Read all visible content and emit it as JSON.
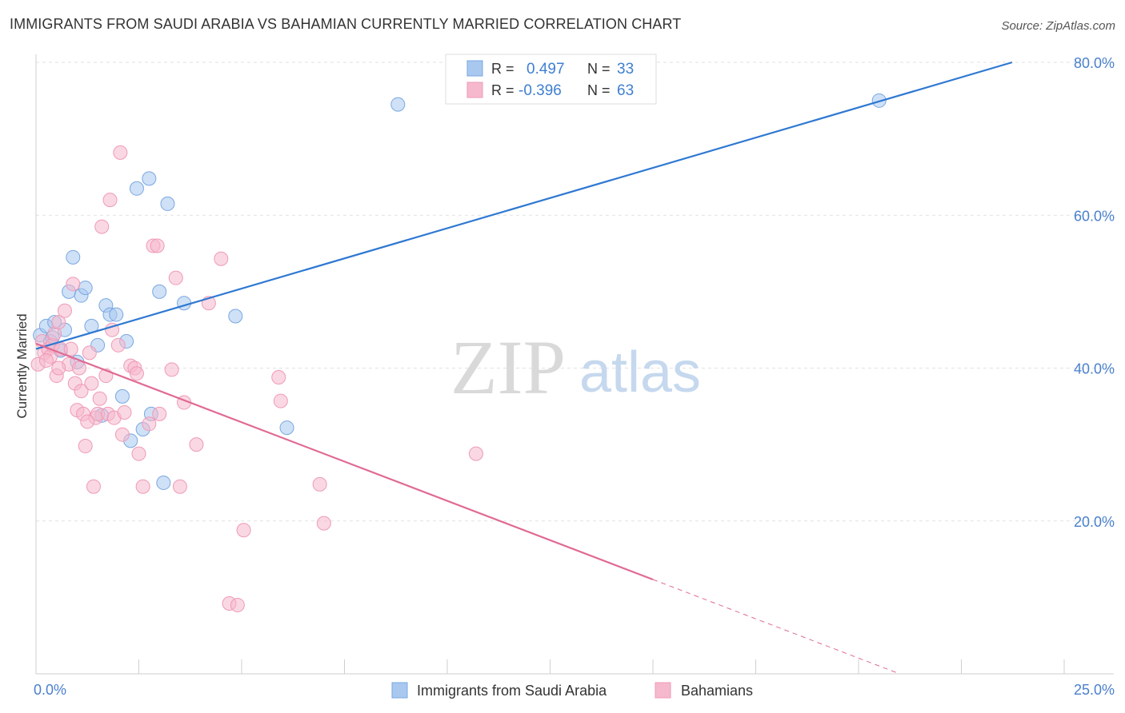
{
  "title": "IMMIGRANTS FROM SAUDI ARABIA VS BAHAMIAN CURRENTLY MARRIED CORRELATION CHART",
  "source": "Source: ZipAtlas.com",
  "watermark": {
    "zip": "ZIP",
    "atlas": "atlas"
  },
  "legend_box": {
    "rows": [
      {
        "r_label": "R =",
        "r_value": "0.497",
        "n_label": "N =",
        "n_value": "33",
        "color": "#a8c8f0"
      },
      {
        "r_label": "R =",
        "r_value": "-0.396",
        "n_label": "N =",
        "n_value": "63",
        "color": "#f6b8cc"
      }
    ]
  },
  "chart_data": {
    "type": "scatter",
    "xlabel": "",
    "ylabel": "Currently Married",
    "xlim": [
      0,
      25
    ],
    "ylim": [
      0,
      80
    ],
    "x_tick_labels": [
      {
        "value": 0,
        "label": "0.0%"
      },
      {
        "value": 25,
        "label": "25.0%"
      }
    ],
    "y_tick_labels": [
      {
        "value": 20,
        "label": "20.0%"
      },
      {
        "value": 40,
        "label": "40.0%"
      },
      {
        "value": 60,
        "label": "60.0%"
      },
      {
        "value": 80,
        "label": "80.0%"
      }
    ],
    "series": [
      {
        "name": "Immigrants from Saudi Arabia",
        "color": "#7aa7e0",
        "fill": "#a8c8f0",
        "line_color": "#2e78d2",
        "trend": {
          "x0": 0,
          "y0": 42.5,
          "x1": 25,
          "y1": 82,
          "dashed_from": null
        },
        "points": [
          [
            0.1,
            44.3
          ],
          [
            0.25,
            45.5
          ],
          [
            0.35,
            43.5
          ],
          [
            0.4,
            44.0
          ],
          [
            0.45,
            46.0
          ],
          [
            0.6,
            42.3
          ],
          [
            0.7,
            45.0
          ],
          [
            0.8,
            50.0
          ],
          [
            0.9,
            54.5
          ],
          [
            1.0,
            40.8
          ],
          [
            1.1,
            49.5
          ],
          [
            1.2,
            50.5
          ],
          [
            1.35,
            45.5
          ],
          [
            1.5,
            43.0
          ],
          [
            1.6,
            33.8
          ],
          [
            1.7,
            48.2
          ],
          [
            1.8,
            47.0
          ],
          [
            1.95,
            47.0
          ],
          [
            2.1,
            36.3
          ],
          [
            2.2,
            43.5
          ],
          [
            2.3,
            30.5
          ],
          [
            2.45,
            63.5
          ],
          [
            2.6,
            32.0
          ],
          [
            2.75,
            64.8
          ],
          [
            2.8,
            34.0
          ],
          [
            3.0,
            50.0
          ],
          [
            3.1,
            25.0
          ],
          [
            3.2,
            61.5
          ],
          [
            3.6,
            48.5
          ],
          [
            4.85,
            46.8
          ],
          [
            6.1,
            32.2
          ],
          [
            8.8,
            74.5
          ],
          [
            20.5,
            75.0
          ]
        ]
      },
      {
        "name": "Bahamians",
        "color": "#ef9ab6",
        "fill": "#f6b8cc",
        "line_color": "#e06a94",
        "trend": {
          "x0": 0,
          "y0": 43.2,
          "x1": 21,
          "y1": 0,
          "dashed_from": 15
        },
        "points": [
          [
            0.05,
            40.5
          ],
          [
            0.15,
            43.5
          ],
          [
            0.2,
            42.0
          ],
          [
            0.3,
            42.5
          ],
          [
            0.35,
            41.5
          ],
          [
            0.4,
            43.0
          ],
          [
            0.45,
            44.5
          ],
          [
            0.5,
            39.0
          ],
          [
            0.55,
            46.0
          ],
          [
            0.6,
            42.5
          ],
          [
            0.7,
            47.5
          ],
          [
            0.8,
            40.5
          ],
          [
            0.85,
            42.5
          ],
          [
            0.9,
            51.0
          ],
          [
            0.95,
            38.0
          ],
          [
            1.0,
            34.5
          ],
          [
            1.05,
            40.0
          ],
          [
            1.1,
            37.0
          ],
          [
            1.15,
            34.0
          ],
          [
            1.2,
            29.8
          ],
          [
            1.3,
            42.0
          ],
          [
            1.35,
            38.0
          ],
          [
            1.4,
            24.5
          ],
          [
            1.45,
            33.5
          ],
          [
            1.5,
            34.0
          ],
          [
            1.55,
            36.0
          ],
          [
            1.6,
            58.5
          ],
          [
            1.7,
            39.0
          ],
          [
            1.75,
            34.0
          ],
          [
            1.8,
            62.0
          ],
          [
            1.85,
            45.0
          ],
          [
            1.9,
            33.5
          ],
          [
            2.0,
            43.0
          ],
          [
            2.05,
            68.2
          ],
          [
            2.1,
            31.3
          ],
          [
            2.15,
            34.2
          ],
          [
            2.3,
            40.3
          ],
          [
            2.4,
            40.0
          ],
          [
            2.45,
            39.3
          ],
          [
            2.5,
            28.8
          ],
          [
            2.6,
            24.5
          ],
          [
            2.75,
            32.7
          ],
          [
            2.85,
            56.0
          ],
          [
            2.95,
            56.0
          ],
          [
            3.0,
            34.0
          ],
          [
            3.3,
            39.8
          ],
          [
            3.4,
            51.8
          ],
          [
            3.5,
            24.5
          ],
          [
            3.6,
            35.5
          ],
          [
            3.9,
            30.0
          ],
          [
            4.2,
            48.5
          ],
          [
            4.5,
            54.3
          ],
          [
            4.7,
            9.2
          ],
          [
            4.9,
            9.0
          ],
          [
            5.05,
            18.8
          ],
          [
            5.9,
            38.8
          ],
          [
            5.95,
            35.7
          ],
          [
            6.9,
            24.8
          ],
          [
            7.0,
            19.7
          ],
          [
            10.7,
            28.8
          ],
          [
            0.25,
            41.0
          ],
          [
            0.55,
            40.0
          ],
          [
            1.25,
            33.0
          ]
        ]
      }
    ],
    "legend": [
      "Immigrants from Saudi Arabia",
      "Bahamians"
    ]
  }
}
